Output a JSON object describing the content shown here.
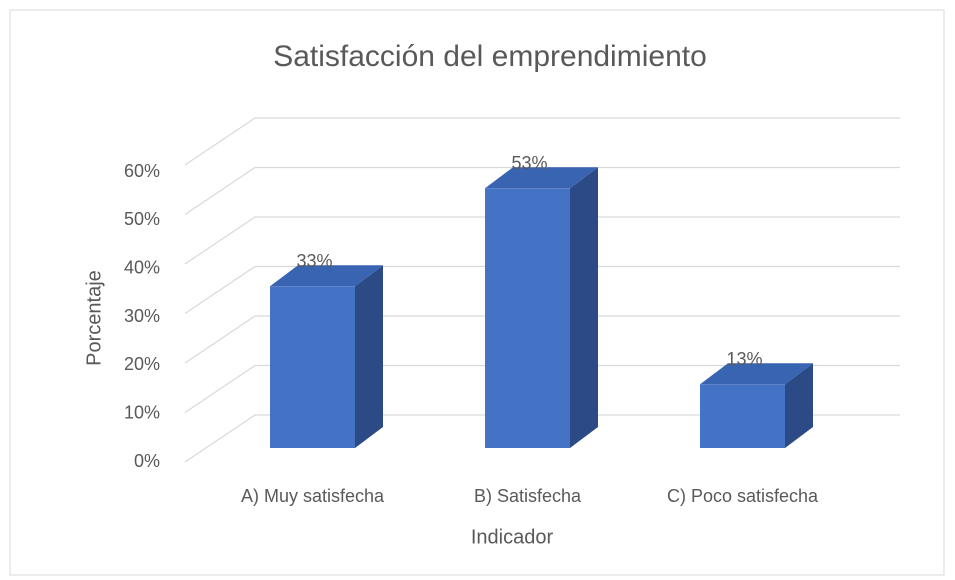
{
  "chart_data": {
    "type": "bar3d",
    "title": "Satisfacción del emprendimiento",
    "x_label": "Indicador",
    "y_label": "Porcentaje",
    "categories": [
      "A) Muy satisfecha",
      "B) Satisfecha",
      "C) Poco satisfecha"
    ],
    "values": [
      33,
      53,
      13
    ],
    "value_labels": [
      "33%",
      "53%",
      "13%"
    ],
    "color": "#4472c4",
    "ylim": [
      0,
      60
    ],
    "yticks": [
      {
        "value": 0,
        "label": "0%"
      },
      {
        "value": 10,
        "label": "10%"
      },
      {
        "value": 20,
        "label": "20%"
      },
      {
        "value": 30,
        "label": "30%"
      },
      {
        "value": 40,
        "label": "40%"
      },
      {
        "value": 50,
        "label": "50%"
      },
      {
        "value": 60,
        "label": "60%"
      }
    ],
    "grid": true
  }
}
